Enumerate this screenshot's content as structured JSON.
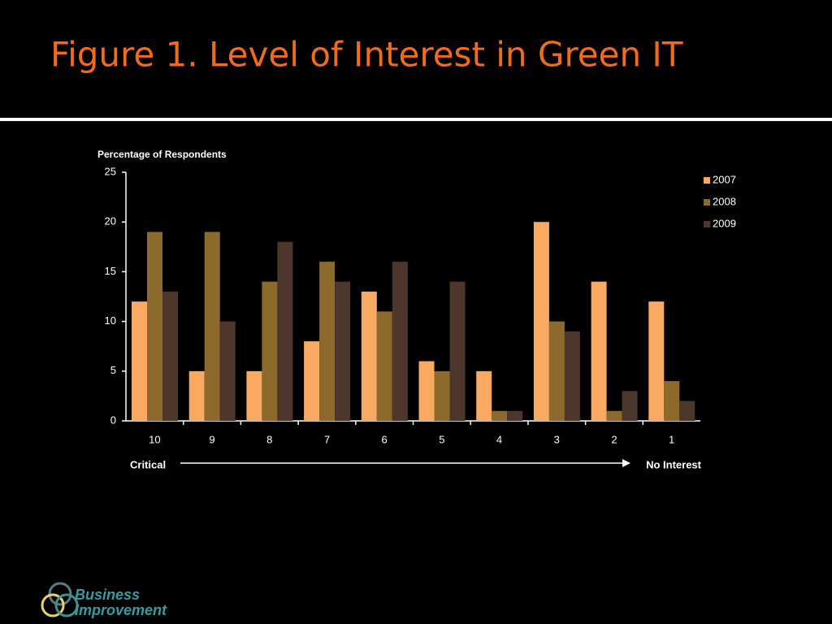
{
  "chart_data": {
    "type": "bar",
    "title": "Figure 1. Level of Interest in Green IT",
    "y_label": "Percentage of Respondents",
    "categories": [
      "10",
      "9",
      "8",
      "7",
      "6",
      "5",
      "4",
      "3",
      "2",
      "1"
    ],
    "series": [
      {
        "name": "2007",
        "color": "#f9a962",
        "values": [
          12,
          5,
          5,
          8,
          13,
          6,
          5,
          20,
          14,
          12
        ]
      },
      {
        "name": "2008",
        "color": "#8c6a2c",
        "values": [
          19,
          19,
          14,
          16,
          11,
          5,
          1,
          10,
          1,
          4
        ]
      },
      {
        "name": "2009",
        "color": "#4d362b",
        "values": [
          13,
          10,
          18,
          14,
          16,
          14,
          1,
          9,
          3,
          2
        ]
      }
    ],
    "ylim": [
      0,
      25
    ],
    "yticks": [
      0,
      5,
      10,
      15,
      20,
      25
    ],
    "legend": "right",
    "annotations": {
      "start": "Critical",
      "end": "No Interest"
    }
  },
  "logo": {
    "line1": "Business",
    "line2": "Improvement"
  }
}
